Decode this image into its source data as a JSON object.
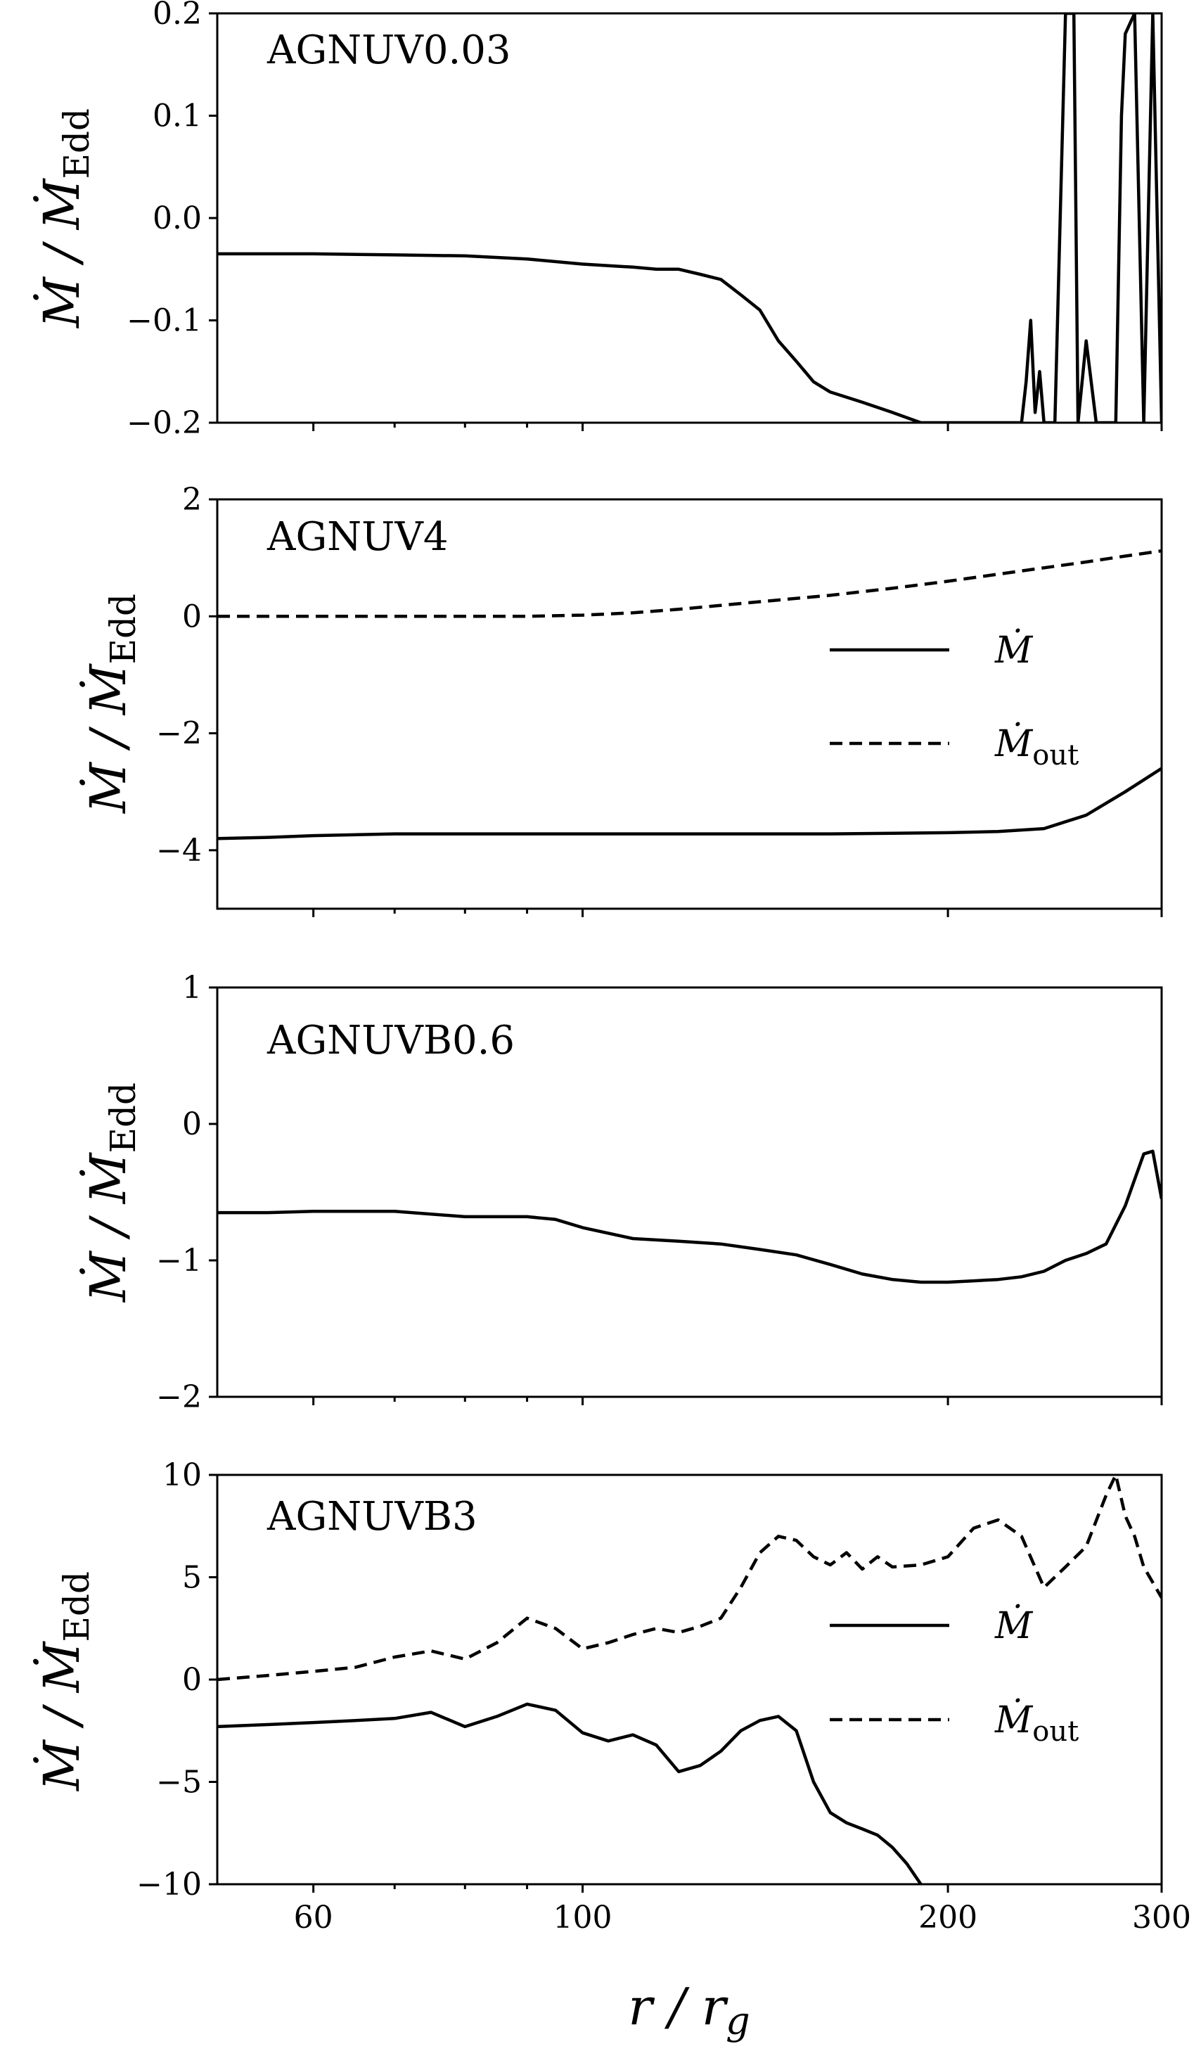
{
  "chart_data": [
    {
      "type": "line",
      "title": "AGNUV0.03",
      "ylabel": "Ṁ / Ṁ_Edd",
      "xlabel": "",
      "xscale": "log",
      "xlim": [
        50,
        300
      ],
      "ylim": [
        -0.2,
        0.2
      ],
      "yticks": [
        -0.2,
        -0.1,
        0.0,
        0.1,
        0.2
      ],
      "ytick_labels": [
        "−0.2",
        "−0.1",
        "0.0",
        "0.1",
        "0.2"
      ],
      "legend": [],
      "series": [
        {
          "style": "solid",
          "x": [
            50,
            60,
            70,
            80,
            90,
            100,
            110,
            115,
            120,
            125,
            130,
            135,
            140,
            145,
            150,
            155,
            160,
            170,
            180,
            190,
            200,
            230,
            232,
            234,
            236,
            238,
            240,
            245,
            250,
            252,
            254,
            256,
            260,
            265,
            270,
            275,
            278,
            280,
            285,
            290,
            295,
            300
          ],
          "y": [
            -0.035,
            -0.035,
            -0.036,
            -0.037,
            -0.04,
            -0.045,
            -0.048,
            -0.05,
            -0.05,
            -0.055,
            -0.06,
            -0.075,
            -0.09,
            -0.12,
            -0.14,
            -0.16,
            -0.17,
            -0.18,
            -0.19,
            -0.2,
            -0.21,
            -0.21,
            -0.16,
            -0.1,
            -0.19,
            -0.15,
            -0.23,
            -0.2,
            0.2,
            0.2,
            0.2,
            -0.2,
            -0.12,
            -0.23,
            -0.23,
            -0.2,
            0.1,
            0.18,
            0.2,
            -0.23,
            0.2,
            -0.23
          ]
        }
      ]
    },
    {
      "type": "line",
      "title": "AGNUV4",
      "ylabel": "Ṁ / Ṁ_Edd",
      "xlabel": "",
      "xscale": "log",
      "xlim": [
        50,
        300
      ],
      "ylim": [
        -5,
        2
      ],
      "yticks": [
        -4,
        -2,
        0,
        2
      ],
      "ytick_labels": [
        "−4",
        "−2",
        "0",
        "2"
      ],
      "legend": [
        "Ṁ",
        "Ṁ_out"
      ],
      "legend_loc": "center-right",
      "series": [
        {
          "name": "Ṁ",
          "style": "solid",
          "x": [
            50,
            55,
            60,
            70,
            80,
            90,
            100,
            120,
            140,
            160,
            180,
            200,
            220,
            240,
            260,
            280,
            300
          ],
          "y": [
            -3.8,
            -3.78,
            -3.75,
            -3.72,
            -3.72,
            -3.72,
            -3.72,
            -3.72,
            -3.72,
            -3.72,
            -3.71,
            -3.7,
            -3.68,
            -3.63,
            -3.4,
            -3.0,
            -2.6
          ]
        },
        {
          "name": "Ṁ_out",
          "style": "dashed",
          "x": [
            50,
            60,
            70,
            80,
            90,
            100,
            110,
            120,
            140,
            160,
            180,
            200,
            220,
            240,
            260,
            280,
            300
          ],
          "y": [
            0.0,
            0.0,
            0.0,
            0.0,
            0.0,
            0.02,
            0.06,
            0.12,
            0.25,
            0.36,
            0.48,
            0.6,
            0.72,
            0.83,
            0.93,
            1.03,
            1.12
          ]
        }
      ]
    },
    {
      "type": "line",
      "title": "AGNUVB0.6",
      "ylabel": "Ṁ / Ṁ_Edd",
      "xlabel": "",
      "xscale": "log",
      "xlim": [
        50,
        300
      ],
      "ylim": [
        -2,
        1
      ],
      "yticks": [
        -2,
        -1,
        0,
        1
      ],
      "ytick_labels": [
        "−2",
        "−1",
        "0",
        "1"
      ],
      "legend": [],
      "series": [
        {
          "style": "solid",
          "x": [
            50,
            55,
            60,
            70,
            80,
            90,
            95,
            100,
            110,
            120,
            130,
            140,
            150,
            160,
            170,
            180,
            190,
            200,
            210,
            220,
            230,
            240,
            250,
            260,
            270,
            280,
            290,
            295,
            300
          ],
          "y": [
            -0.65,
            -0.65,
            -0.64,
            -0.64,
            -0.68,
            -0.68,
            -0.7,
            -0.76,
            -0.84,
            -0.86,
            -0.88,
            -0.92,
            -0.96,
            -1.03,
            -1.1,
            -1.14,
            -1.16,
            -1.16,
            -1.15,
            -1.14,
            -1.12,
            -1.08,
            -1.0,
            -0.95,
            -0.88,
            -0.6,
            -0.22,
            -0.2,
            -0.55
          ]
        }
      ]
    },
    {
      "type": "line",
      "title": "AGNUVB3",
      "ylabel": "Ṁ / Ṁ_Edd",
      "xlabel": "r / r_g",
      "xscale": "log",
      "xlim": [
        50,
        300
      ],
      "ylim": [
        -10,
        10
      ],
      "xticks": [
        60,
        100,
        200,
        300
      ],
      "xtick_labels": [
        "60",
        "100",
        "200",
        "300"
      ],
      "yticks": [
        -10,
        -5,
        0,
        5,
        10
      ],
      "ytick_labels": [
        "−10",
        "−5",
        "0",
        "5",
        "10"
      ],
      "legend": [
        "Ṁ",
        "Ṁ_out"
      ],
      "legend_loc": "center-right",
      "series": [
        {
          "name": "Ṁ",
          "style": "solid",
          "x": [
            50,
            55,
            60,
            65,
            70,
            75,
            80,
            85,
            90,
            95,
            100,
            105,
            110,
            115,
            120,
            125,
            130,
            135,
            140,
            145,
            150,
            155,
            160,
            165,
            170,
            175,
            180,
            185,
            190
          ],
          "y": [
            -2.3,
            -2.2,
            -2.1,
            -2.0,
            -1.9,
            -1.6,
            -2.3,
            -1.8,
            -1.2,
            -1.5,
            -2.6,
            -3.0,
            -2.7,
            -3.2,
            -4.5,
            -4.2,
            -3.5,
            -2.5,
            -2.0,
            -1.8,
            -2.5,
            -5.0,
            -6.5,
            -7.0,
            -7.3,
            -7.6,
            -8.2,
            -9.0,
            -10.0
          ]
        },
        {
          "name": "Ṁ_out",
          "style": "dashed",
          "x": [
            50,
            55,
            60,
            65,
            70,
            75,
            80,
            85,
            90,
            95,
            100,
            105,
            110,
            115,
            120,
            125,
            130,
            135,
            140,
            145,
            150,
            155,
            160,
            165,
            170,
            175,
            180,
            190,
            200,
            210,
            220,
            230,
            240,
            250,
            260,
            270,
            275,
            280,
            285,
            290,
            300
          ],
          "y": [
            0.0,
            0.2,
            0.4,
            0.6,
            1.1,
            1.4,
            1.0,
            1.8,
            3.0,
            2.5,
            1.5,
            1.8,
            2.2,
            2.5,
            2.3,
            2.6,
            3.0,
            4.5,
            6.2,
            7.0,
            6.8,
            6.0,
            5.6,
            6.2,
            5.4,
            6.0,
            5.5,
            5.6,
            6.0,
            7.4,
            7.8,
            7.0,
            4.5,
            5.5,
            6.5,
            9.0,
            10.0,
            8.0,
            7.0,
            5.5,
            4.0
          ]
        }
      ]
    }
  ]
}
